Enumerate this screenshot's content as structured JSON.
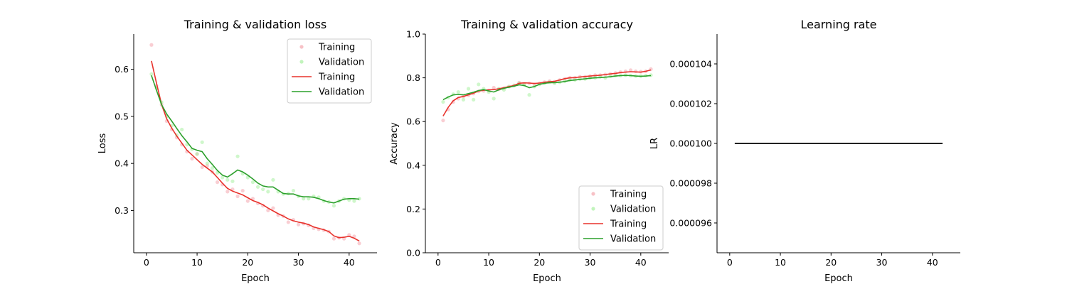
{
  "chart_data": [
    {
      "type": "line",
      "title": "Training & validation loss",
      "xlabel": "Epoch",
      "ylabel": "Loss",
      "xlim": [
        -2.5,
        45.5
      ],
      "ylim": [
        0.21,
        0.675
      ],
      "xticks": [
        0,
        10,
        20,
        30,
        40
      ],
      "yticks": [
        0.3,
        0.4,
        0.5,
        0.6
      ],
      "ytick_labels": [
        "0.3",
        "0.4",
        "0.5",
        "0.6"
      ],
      "legend_position": "top-right",
      "legend": [
        "Training",
        "Validation",
        "Training",
        "Validation"
      ],
      "x": [
        1,
        2,
        3,
        4,
        5,
        6,
        7,
        8,
        9,
        10,
        11,
        12,
        13,
        14,
        15,
        16,
        17,
        18,
        19,
        20,
        21,
        22,
        23,
        24,
        25,
        26,
        27,
        28,
        29,
        30,
        31,
        32,
        33,
        34,
        35,
        36,
        37,
        38,
        39,
        40,
        41,
        42
      ],
      "series": [
        {
          "name": "Training",
          "kind": "points",
          "color": "#f4a6ae",
          "values": [
            0.652,
            0.565,
            0.525,
            0.49,
            0.472,
            0.455,
            0.44,
            0.425,
            0.41,
            0.42,
            0.392,
            0.395,
            0.382,
            0.36,
            0.355,
            0.34,
            0.345,
            0.33,
            0.342,
            0.32,
            0.325,
            0.315,
            0.31,
            0.3,
            0.305,
            0.29,
            0.288,
            0.275,
            0.28,
            0.27,
            0.272,
            0.268,
            0.262,
            0.26,
            0.258,
            0.255,
            0.24,
            0.242,
            0.24,
            0.248,
            0.245,
            0.23
          ]
        },
        {
          "name": "Validation",
          "kind": "points",
          "color": "#a8f0a0",
          "values": [
            0.59,
            0.56,
            0.53,
            0.5,
            0.48,
            0.46,
            0.472,
            0.44,
            0.43,
            0.42,
            0.445,
            0.4,
            0.39,
            0.38,
            0.37,
            0.365,
            0.362,
            0.415,
            0.378,
            0.37,
            0.36,
            0.35,
            0.345,
            0.34,
            0.365,
            0.34,
            0.335,
            0.336,
            0.342,
            0.33,
            0.325,
            0.325,
            0.33,
            0.328,
            0.32,
            0.318,
            0.31,
            0.32,
            0.325,
            0.322,
            0.32,
            0.325
          ]
        },
        {
          "name": "Training",
          "kind": "line",
          "color": "#e8322c",
          "values": [
            0.618,
            0.57,
            0.525,
            0.495,
            0.475,
            0.458,
            0.443,
            0.428,
            0.418,
            0.408,
            0.398,
            0.39,
            0.382,
            0.37,
            0.358,
            0.347,
            0.341,
            0.337,
            0.333,
            0.327,
            0.321,
            0.317,
            0.312,
            0.305,
            0.299,
            0.293,
            0.288,
            0.282,
            0.278,
            0.275,
            0.273,
            0.27,
            0.265,
            0.262,
            0.259,
            0.255,
            0.246,
            0.242,
            0.243,
            0.245,
            0.241,
            0.235
          ]
        },
        {
          "name": "Validation",
          "kind": "line",
          "color": "#2ca02c",
          "values": [
            0.587,
            0.555,
            0.525,
            0.505,
            0.49,
            0.474,
            0.459,
            0.446,
            0.432,
            0.428,
            0.425,
            0.41,
            0.398,
            0.385,
            0.375,
            0.371,
            0.378,
            0.386,
            0.382,
            0.375,
            0.367,
            0.358,
            0.352,
            0.35,
            0.35,
            0.343,
            0.336,
            0.335,
            0.335,
            0.331,
            0.329,
            0.329,
            0.328,
            0.325,
            0.321,
            0.318,
            0.316,
            0.32,
            0.324,
            0.325,
            0.325,
            0.324
          ]
        }
      ]
    },
    {
      "type": "line",
      "title": "Training & validation accuracy",
      "xlabel": "Epoch",
      "ylabel": "Accuracy",
      "xlim": [
        -2.5,
        45.5
      ],
      "ylim": [
        0.0,
        1.0
      ],
      "xticks": [
        0,
        10,
        20,
        30,
        40
      ],
      "yticks": [
        0.0,
        0.2,
        0.4,
        0.6,
        0.8,
        1.0
      ],
      "ytick_labels": [
        "0.0",
        "0.2",
        "0.4",
        "0.6",
        "0.8",
        "1.0"
      ],
      "legend_position": "bottom-right",
      "legend": [
        "Training",
        "Validation",
        "Training",
        "Validation"
      ],
      "x": [
        1,
        2,
        3,
        4,
        5,
        6,
        7,
        8,
        9,
        10,
        11,
        12,
        13,
        14,
        15,
        16,
        17,
        18,
        19,
        20,
        21,
        22,
        23,
        24,
        25,
        26,
        27,
        28,
        29,
        30,
        31,
        32,
        33,
        34,
        35,
        36,
        37,
        38,
        39,
        40,
        41,
        42
      ],
      "series": [
        {
          "name": "Training",
          "kind": "points",
          "color": "#f4a6ae",
          "values": [
            0.605,
            0.655,
            0.69,
            0.705,
            0.715,
            0.72,
            0.728,
            0.738,
            0.74,
            0.742,
            0.755,
            0.748,
            0.752,
            0.76,
            0.765,
            0.778,
            0.77,
            0.775,
            0.77,
            0.775,
            0.78,
            0.785,
            0.782,
            0.79,
            0.795,
            0.8,
            0.8,
            0.805,
            0.805,
            0.808,
            0.812,
            0.812,
            0.815,
            0.818,
            0.822,
            0.826,
            0.83,
            0.835,
            0.83,
            0.828,
            0.83,
            0.84
          ]
        },
        {
          "name": "Validation",
          "kind": "points",
          "color": "#a8f0a0",
          "values": [
            0.69,
            0.71,
            0.725,
            0.735,
            0.7,
            0.75,
            0.7,
            0.77,
            0.75,
            0.735,
            0.705,
            0.75,
            0.745,
            0.76,
            0.765,
            0.775,
            0.768,
            0.722,
            0.76,
            0.77,
            0.775,
            0.78,
            0.775,
            0.78,
            0.785,
            0.79,
            0.79,
            0.795,
            0.795,
            0.8,
            0.8,
            0.805,
            0.8,
            0.808,
            0.81,
            0.81,
            0.812,
            0.81,
            0.808,
            0.808,
            0.81,
            0.812
          ]
        },
        {
          "name": "Training",
          "kind": "line",
          "color": "#e8322c",
          "values": [
            0.625,
            0.665,
            0.695,
            0.71,
            0.715,
            0.722,
            0.73,
            0.74,
            0.743,
            0.745,
            0.746,
            0.75,
            0.755,
            0.76,
            0.765,
            0.775,
            0.777,
            0.776,
            0.774,
            0.776,
            0.78,
            0.782,
            0.784,
            0.79,
            0.796,
            0.8,
            0.801,
            0.804,
            0.806,
            0.808,
            0.81,
            0.812,
            0.815,
            0.818,
            0.82,
            0.824,
            0.826,
            0.828,
            0.827,
            0.826,
            0.83,
            0.836
          ]
        },
        {
          "name": "Validation",
          "kind": "line",
          "color": "#2ca02c",
          "values": [
            0.7,
            0.712,
            0.722,
            0.724,
            0.722,
            0.728,
            0.734,
            0.742,
            0.746,
            0.74,
            0.735,
            0.745,
            0.752,
            0.757,
            0.762,
            0.768,
            0.765,
            0.755,
            0.76,
            0.77,
            0.775,
            0.778,
            0.778,
            0.78,
            0.783,
            0.788,
            0.79,
            0.793,
            0.795,
            0.798,
            0.8,
            0.801,
            0.803,
            0.805,
            0.808,
            0.81,
            0.811,
            0.81,
            0.808,
            0.807,
            0.808,
            0.81
          ]
        }
      ]
    },
    {
      "type": "line",
      "title": "Learning rate",
      "xlabel": "Epoch",
      "ylabel": "LR",
      "xlim": [
        -2.5,
        45.5
      ],
      "ylim": [
        9.45e-05,
        0.0001055
      ],
      "xticks": [
        0,
        10,
        20,
        30,
        40
      ],
      "yticks": [
        9.6e-05,
        9.8e-05,
        0.0001,
        0.000102,
        0.000104
      ],
      "ytick_labels": [
        "0.000096",
        "0.000098",
        "0.000100",
        "0.000102",
        "0.000104"
      ],
      "x": [
        1,
        42
      ],
      "series": [
        {
          "kind": "line",
          "color": "#000000",
          "values": [
            0.0001,
            0.0001
          ]
        }
      ]
    }
  ]
}
